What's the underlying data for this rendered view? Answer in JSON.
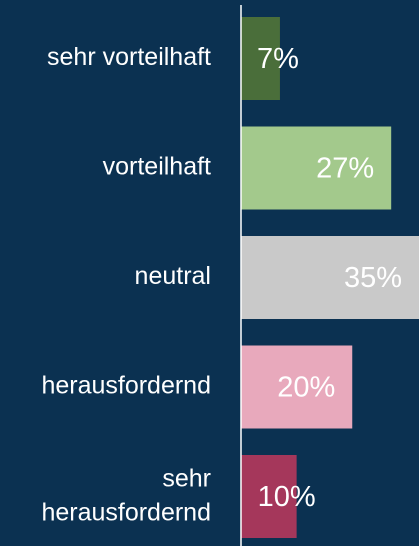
{
  "chart_data": {
    "type": "barh",
    "categories": [
      "sehr vorteilhaft",
      "vorteilhaft",
      "neutral",
      "herausfordernd",
      "sehr herausfordernd"
    ],
    "values": [
      7,
      27,
      35,
      20,
      10
    ],
    "value_labels": [
      "7%",
      "27%",
      "35%",
      "20%",
      "10%"
    ],
    "colors": [
      "#4a6e3a",
      "#a3c98c",
      "#c9c9c9",
      "#e8a9bc",
      "#a5375b"
    ],
    "xlim": [
      0,
      32
    ]
  }
}
